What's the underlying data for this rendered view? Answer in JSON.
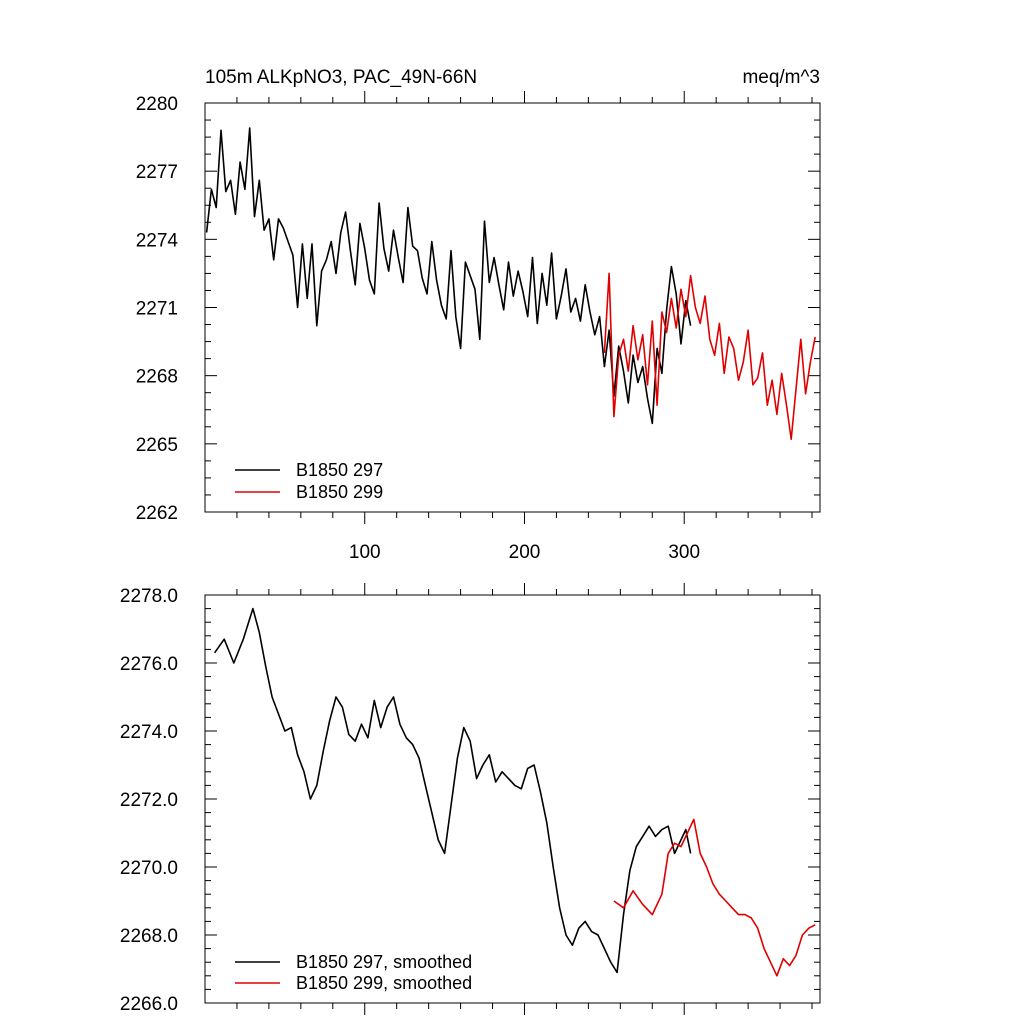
{
  "figure": {
    "title_left": "105m ALKpNO3, PAC_49N-66N",
    "title_right": "meq/m^3"
  },
  "chart_data": [
    {
      "type": "line",
      "title": "105m ALKpNO3, PAC_49N-66N",
      "units": "meq/m^3",
      "xlabel": "",
      "ylabel": "",
      "xlim": [
        0,
        385
      ],
      "ylim": [
        2262,
        2280
      ],
      "x_ticks": [
        100,
        200,
        300
      ],
      "x_tick_labels": [
        "100",
        "200",
        "300"
      ],
      "y_ticks": [
        2262,
        2265,
        2268,
        2271,
        2274,
        2277,
        2280
      ],
      "y_tick_labels": [
        "2262",
        "2265",
        "2268",
        "2271",
        "2274",
        "2277",
        "2280"
      ],
      "legend_position": "bottom-left",
      "series": [
        {
          "name": "B1850 297",
          "color": "#000000",
          "x": [
            1,
            4,
            7,
            10,
            13,
            16,
            19,
            22,
            25,
            28,
            31,
            34,
            37,
            40,
            43,
            46,
            49,
            52,
            55,
            58,
            61,
            64,
            67,
            70,
            73,
            76,
            79,
            82,
            85,
            88,
            91,
            94,
            97,
            100,
            103,
            106,
            109,
            112,
            115,
            118,
            121,
            124,
            127,
            130,
            133,
            136,
            139,
            142,
            145,
            148,
            151,
            154,
            157,
            160,
            163,
            166,
            169,
            172,
            175,
            178,
            181,
            184,
            187,
            190,
            193,
            196,
            199,
            202,
            205,
            208,
            211,
            214,
            217,
            220,
            223,
            226,
            229,
            232,
            235,
            238,
            241,
            244,
            247,
            250,
            253,
            256,
            259,
            262,
            265,
            268,
            271,
            274,
            277,
            280,
            283,
            286,
            289,
            292,
            295,
            298,
            301,
            304
          ],
          "values": [
            2274.3,
            2276.2,
            2275.4,
            2278.8,
            2276.1,
            2276.6,
            2275.1,
            2277.4,
            2276.2,
            2278.9,
            2275.0,
            2276.6,
            2274.4,
            2274.9,
            2273.1,
            2274.9,
            2274.5,
            2273.9,
            2273.3,
            2271.0,
            2273.8,
            2271.4,
            2273.8,
            2270.2,
            2272.6,
            2273.1,
            2273.9,
            2272.5,
            2274.3,
            2275.2,
            2273.5,
            2272.0,
            2274.7,
            2273.6,
            2272.2,
            2271.6,
            2275.6,
            2273.6,
            2272.6,
            2274.4,
            2273.2,
            2272.1,
            2275.4,
            2273.7,
            2273.5,
            2272.3,
            2271.6,
            2273.9,
            2272.2,
            2271.1,
            2270.5,
            2273.5,
            2270.6,
            2269.2,
            2273.0,
            2272.4,
            2271.8,
            2269.6,
            2274.8,
            2272.1,
            2273.2,
            2272.0,
            2270.9,
            2273.0,
            2271.5,
            2272.6,
            2271.7,
            2270.6,
            2273.2,
            2270.3,
            2272.5,
            2271.1,
            2273.4,
            2270.5,
            2271.5,
            2272.7,
            2270.8,
            2271.4,
            2270.4,
            2272.0,
            2270.8,
            2269.8,
            2270.6,
            2268.4,
            2270.0,
            2267.1,
            2269.3,
            2268.2,
            2266.8,
            2268.9,
            2267.7,
            2268.4,
            2267.0,
            2265.9,
            2269.2,
            2268.1,
            2270.9,
            2272.8,
            2271.6,
            2269.4,
            2271.3,
            2270.2
          ]
        },
        {
          "name": "B1850 299",
          "color": "#e00000",
          "x": [
            250,
            253,
            256,
            259,
            262,
            265,
            268,
            271,
            274,
            277,
            280,
            283,
            286,
            289,
            292,
            295,
            298,
            301,
            304,
            307,
            310,
            313,
            316,
            319,
            322,
            325,
            328,
            331,
            334,
            337,
            340,
            343,
            346,
            349,
            352,
            355,
            358,
            361,
            364,
            367,
            370,
            373,
            376,
            379,
            382
          ],
          "values": [
            2269.0,
            2272.5,
            2266.2,
            2268.9,
            2269.6,
            2268.2,
            2270.2,
            2268.7,
            2269.8,
            2267.6,
            2270.4,
            2266.7,
            2270.8,
            2269.9,
            2271.4,
            2270.1,
            2271.8,
            2270.6,
            2272.4,
            2271.0,
            2270.3,
            2271.5,
            2269.6,
            2268.9,
            2270.3,
            2268.1,
            2269.7,
            2269.2,
            2267.8,
            2268.6,
            2270.0,
            2267.6,
            2267.9,
            2269.0,
            2266.7,
            2267.8,
            2266.3,
            2268.1,
            2266.7,
            2265.2,
            2267.4,
            2269.6,
            2267.2,
            2268.6,
            2269.7
          ]
        }
      ]
    },
    {
      "type": "line",
      "title": "",
      "xlabel": "",
      "ylabel": "",
      "xlim": [
        0,
        385
      ],
      "ylim": [
        2266.0,
        2278.0
      ],
      "x_ticks": [
        100,
        200,
        300
      ],
      "x_tick_labels": [],
      "y_ticks": [
        2266.0,
        2268.0,
        2270.0,
        2272.0,
        2274.0,
        2276.0,
        2278.0
      ],
      "y_tick_labels": [
        "2266.0",
        "2268.0",
        "2270.0",
        "2272.0",
        "2274.0",
        "2276.0",
        "2278.0"
      ],
      "legend_position": "bottom-left",
      "series": [
        {
          "name": "B1850 297, smoothed",
          "color": "#000000",
          "x": [
            6,
            12,
            18,
            24,
            30,
            34,
            38,
            42,
            46,
            50,
            54,
            58,
            62,
            66,
            70,
            74,
            78,
            82,
            86,
            90,
            94,
            98,
            102,
            106,
            110,
            114,
            118,
            122,
            126,
            130,
            134,
            138,
            142,
            146,
            150,
            154,
            158,
            162,
            166,
            170,
            174,
            178,
            182,
            186,
            190,
            194,
            198,
            202,
            206,
            210,
            214,
            218,
            222,
            226,
            230,
            234,
            238,
            242,
            246,
            250,
            254,
            258,
            262,
            266,
            270,
            274,
            278,
            282,
            286,
            290,
            294,
            298,
            301,
            304
          ],
          "values": [
            2276.3,
            2276.7,
            2276.0,
            2276.7,
            2277.6,
            2276.9,
            2275.9,
            2275.0,
            2274.5,
            2274.0,
            2274.1,
            2273.3,
            2272.8,
            2272.0,
            2272.4,
            2273.4,
            2274.3,
            2275.0,
            2274.7,
            2273.9,
            2273.7,
            2274.2,
            2273.8,
            2274.9,
            2274.1,
            2274.7,
            2275.0,
            2274.2,
            2273.8,
            2273.6,
            2273.2,
            2272.4,
            2271.6,
            2270.8,
            2270.4,
            2271.8,
            2273.2,
            2274.1,
            2273.7,
            2272.6,
            2273.0,
            2273.3,
            2272.5,
            2272.8,
            2272.6,
            2272.4,
            2272.3,
            2272.9,
            2273.0,
            2272.2,
            2271.3,
            2270.0,
            2268.8,
            2268.0,
            2267.7,
            2268.2,
            2268.4,
            2268.1,
            2268.0,
            2267.6,
            2267.2,
            2266.9,
            2268.6,
            2269.9,
            2270.6,
            2270.9,
            2271.2,
            2270.9,
            2271.1,
            2271.2,
            2270.4,
            2270.8,
            2271.1,
            2270.4
          ]
        },
        {
          "name": "B1850 299, smoothed",
          "color": "#e00000",
          "x": [
            256,
            262,
            268,
            274,
            280,
            286,
            290,
            294,
            298,
            302,
            306,
            310,
            314,
            318,
            322,
            326,
            330,
            334,
            338,
            342,
            346,
            350,
            354,
            358,
            362,
            366,
            370,
            374,
            378,
            382
          ],
          "values": [
            2269.0,
            2268.8,
            2269.3,
            2268.9,
            2268.6,
            2269.2,
            2270.4,
            2270.7,
            2270.6,
            2271.0,
            2271.4,
            2270.4,
            2270.0,
            2269.5,
            2269.2,
            2269.0,
            2268.8,
            2268.6,
            2268.6,
            2268.5,
            2268.2,
            2267.6,
            2267.2,
            2266.8,
            2267.3,
            2267.1,
            2267.4,
            2268.0,
            2268.2,
            2268.3
          ]
        }
      ]
    }
  ]
}
